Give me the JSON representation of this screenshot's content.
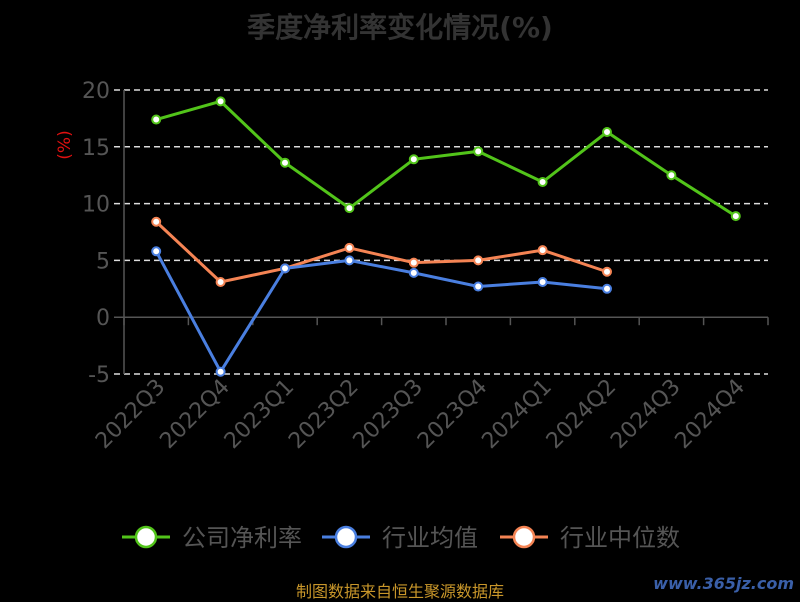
{
  "title": "季度净利率变化情况(%)",
  "footer": "制图数据来自恒生聚源数据库",
  "watermark": "www.365jz.com",
  "chart_data": {
    "type": "line",
    "title": "季度净利率变化情况(%)",
    "ylabel": "(%)",
    "xlabel": "",
    "categories": [
      "2022Q3",
      "2022Q4",
      "2023Q1",
      "2023Q2",
      "2023Q3",
      "2023Q4",
      "2024Q1",
      "2024Q2",
      "2024Q3",
      "2024Q4"
    ],
    "ylim": [
      -5,
      20
    ],
    "yticks": [
      -5,
      0,
      5,
      10,
      15,
      20
    ],
    "grid": "horizontal-dashed",
    "legend": "bottom",
    "series": [
      {
        "name": "公司净利率",
        "color": "#52c41a",
        "values": [
          17.4,
          19.0,
          13.6,
          9.6,
          13.9,
          14.6,
          11.9,
          16.3,
          12.5,
          8.9
        ]
      },
      {
        "name": "行业均值",
        "color": "#4a7fe0",
        "values": [
          5.8,
          -4.8,
          4.3,
          5.0,
          3.9,
          2.7,
          3.1,
          2.5,
          null,
          null
        ]
      },
      {
        "name": "行业中位数",
        "color": "#f58454",
        "values": [
          8.4,
          3.1,
          4.3,
          6.1,
          4.8,
          5.0,
          5.9,
          4.0,
          null,
          null
        ]
      }
    ]
  }
}
